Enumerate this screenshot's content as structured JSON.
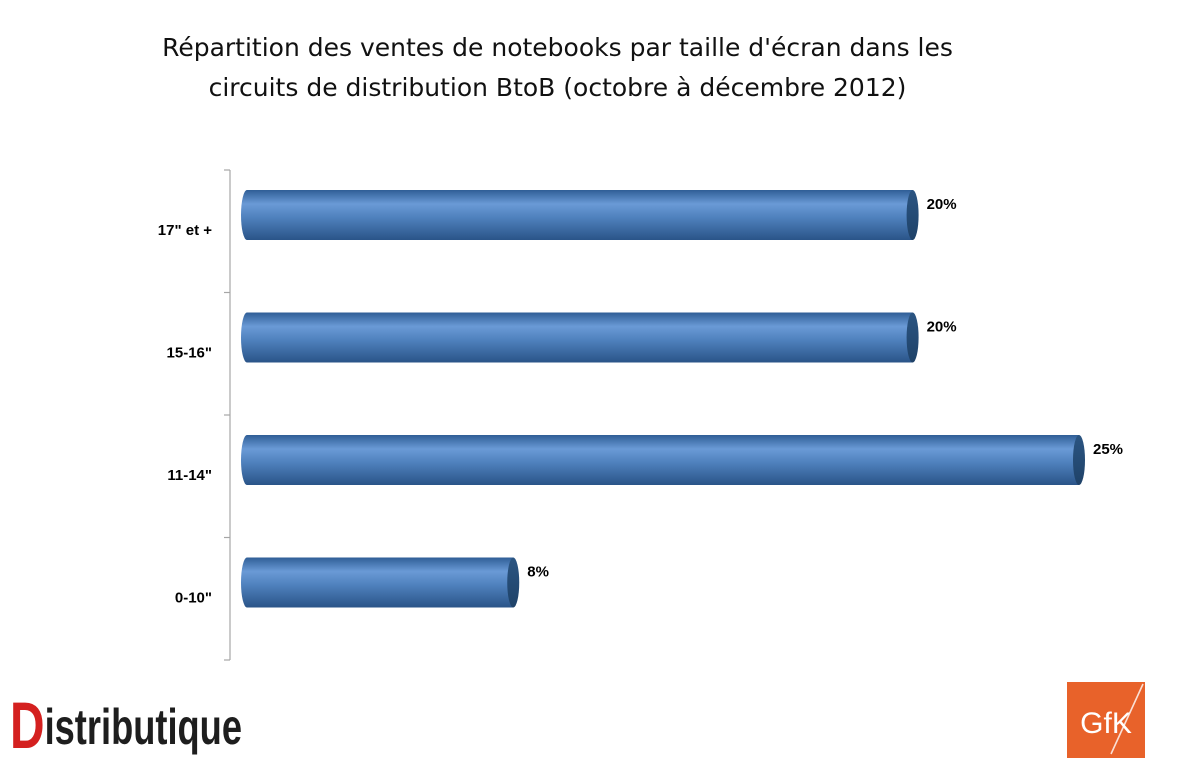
{
  "title_lines": [
    "Répartition des ventes de notebooks par taille d'écran dans les",
    "circuits de distribution BtoB (octobre à décembre 2012)"
  ],
  "chart_data": {
    "type": "bar",
    "orientation": "horizontal",
    "title": "Répartition des ventes de notebooks par taille d'écran dans les circuits de distribution BtoB (octobre à décembre 2012)",
    "categories": [
      "17\" et +",
      "15-16\"",
      "11-14\"",
      "0-10\""
    ],
    "values": [
      20,
      20,
      25,
      8
    ],
    "data_labels": [
      "20%",
      "20%",
      "25%",
      "8%"
    ],
    "xlim": [
      0,
      25
    ],
    "grid": false,
    "bar_color": "#4f81bd"
  },
  "logos": {
    "distributique": "Distributique",
    "gfk": "GfK"
  },
  "colors": {
    "distributique_red": "#d4201f",
    "distributique_dark": "#1e1e1e",
    "gfk_orange": "#e8622a"
  }
}
